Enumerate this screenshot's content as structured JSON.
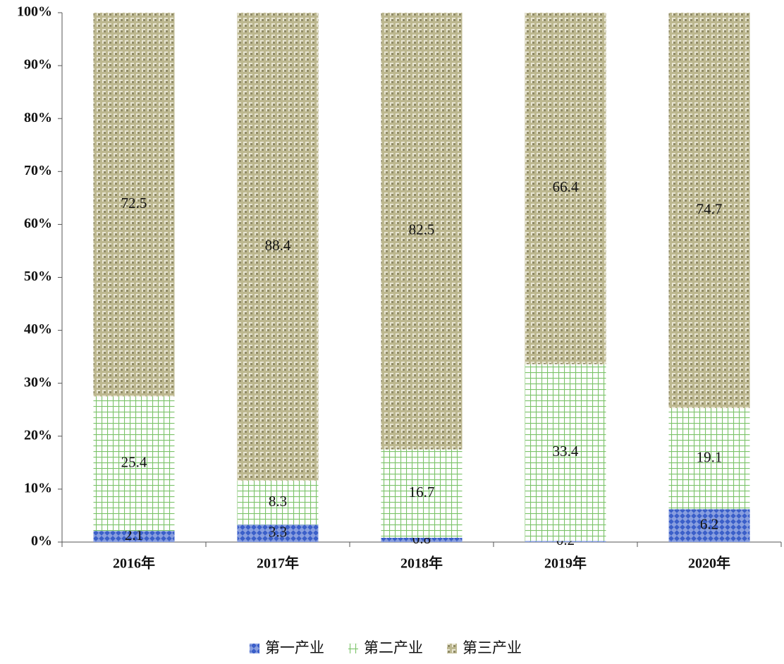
{
  "chart_data": {
    "type": "stacked_bar_percent",
    "categories": [
      "2016年",
      "2017年",
      "2018年",
      "2019年",
      "2020年"
    ],
    "series": [
      {
        "name": "第一产业",
        "color": "#3b5fc9",
        "values": [
          2.1,
          3.3,
          0.8,
          0.2,
          6.2
        ]
      },
      {
        "name": "第二产业",
        "color": "#7cc36a",
        "values": [
          25.4,
          8.3,
          16.7,
          33.4,
          19.1
        ]
      },
      {
        "name": "第三产业",
        "color": "#bdb890",
        "values": [
          72.5,
          88.4,
          82.5,
          66.4,
          74.7
        ]
      }
    ],
    "ylim": [
      0,
      100
    ],
    "yticks": [
      {
        "value": 0,
        "label": "0%"
      },
      {
        "value": 10,
        "label": "10%"
      },
      {
        "value": 20,
        "label": "20%"
      },
      {
        "value": 30,
        "label": "30%"
      },
      {
        "value": 40,
        "label": "40%"
      },
      {
        "value": 50,
        "label": "50%"
      },
      {
        "value": 60,
        "label": "60%"
      },
      {
        "value": 70,
        "label": "70%"
      },
      {
        "value": 80,
        "label": "80%"
      },
      {
        "value": 90,
        "label": "90%"
      },
      {
        "value": 100,
        "label": "100%"
      }
    ],
    "legend": "bottom"
  }
}
